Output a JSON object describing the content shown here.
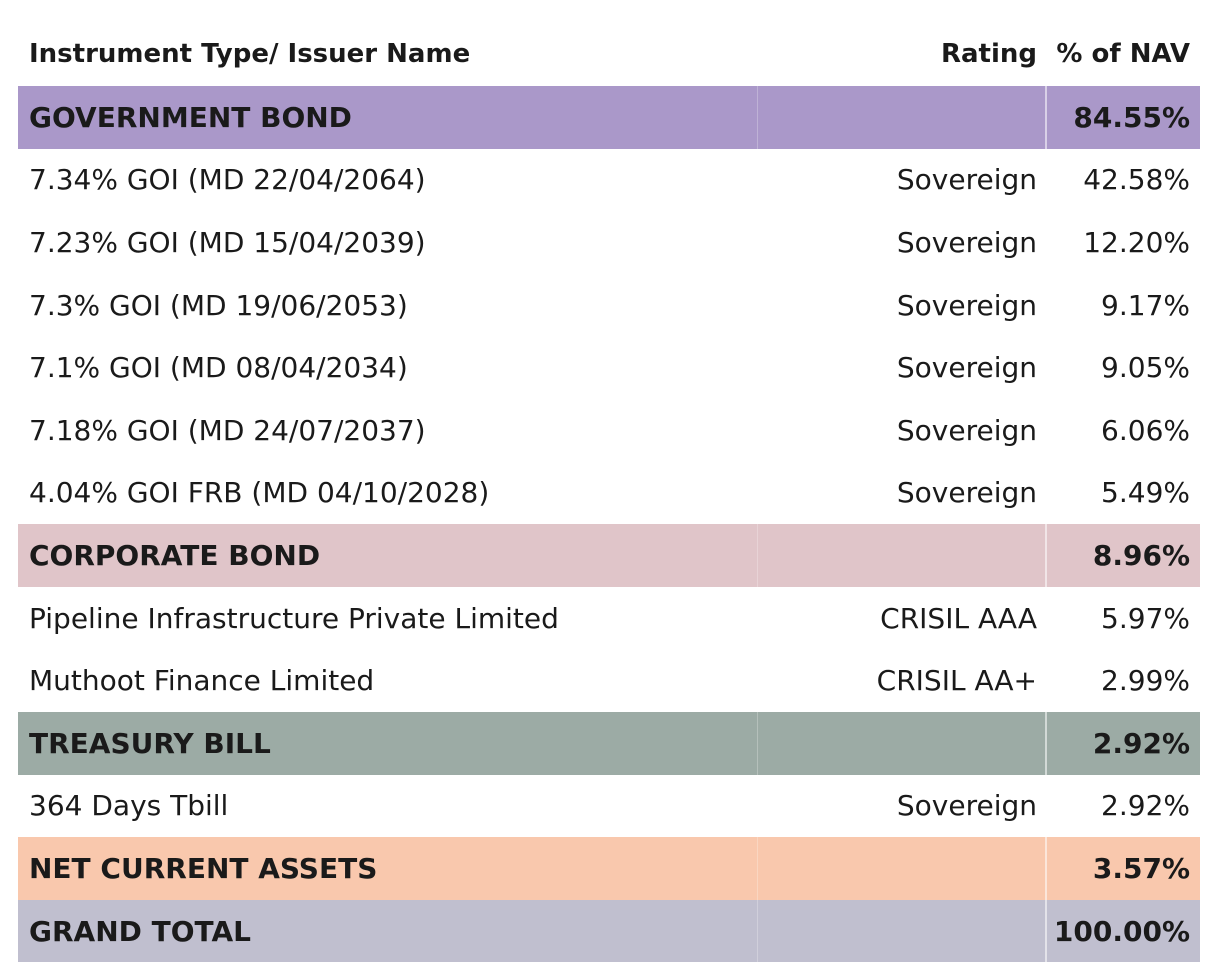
{
  "table": {
    "headers": {
      "name": "Instrument Type/ Issuer Name",
      "rating": "Rating",
      "nav": "% of NAV"
    },
    "rows": [
      {
        "kind": "category",
        "name": "GOVERNMENT BOND",
        "rating": "",
        "nav": "84.55%",
        "color": "#aa98c9"
      },
      {
        "kind": "item",
        "name": "7.34% GOI (MD 22/04/2064)",
        "rating": "Sovereign",
        "nav": "42.58%"
      },
      {
        "kind": "item",
        "name": "7.23% GOI (MD 15/04/2039)",
        "rating": "Sovereign",
        "nav": "12.20%"
      },
      {
        "kind": "item",
        "name": "7.3% GOI (MD 19/06/2053)",
        "rating": "Sovereign",
        "nav": "9.17%"
      },
      {
        "kind": "item",
        "name": "7.1% GOI (MD 08/04/2034)",
        "rating": "Sovereign",
        "nav": "9.05%"
      },
      {
        "kind": "item",
        "name": "7.18% GOI (MD 24/07/2037)",
        "rating": "Sovereign",
        "nav": "6.06%"
      },
      {
        "kind": "item",
        "name": "4.04% GOI FRB (MD 04/10/2028)",
        "rating": "Sovereign",
        "nav": "5.49%"
      },
      {
        "kind": "category",
        "name": "CORPORATE BOND",
        "rating": "",
        "nav": "8.96%",
        "color": "#e0c5c9"
      },
      {
        "kind": "item",
        "name": "Pipeline Infrastructure Private Limited",
        "rating": "CRISIL AAA",
        "nav": "5.97%"
      },
      {
        "kind": "item",
        "name": "Muthoot Finance Limited",
        "rating": "CRISIL AA+",
        "nav": "2.99%"
      },
      {
        "kind": "category",
        "name": "TREASURY BILL",
        "rating": "",
        "nav": "2.92%",
        "color": "#9caba5"
      },
      {
        "kind": "item",
        "name": "364 Days Tbill",
        "rating": "Sovereign",
        "nav": "2.92%"
      },
      {
        "kind": "category",
        "name": "NET CURRENT ASSETS",
        "rating": "",
        "nav": "3.57%",
        "color": "#f9c8ad"
      },
      {
        "kind": "category",
        "name": "GRAND TOTAL",
        "rating": "",
        "nav": "100.00%",
        "color": "#c0bfcf"
      }
    ]
  }
}
